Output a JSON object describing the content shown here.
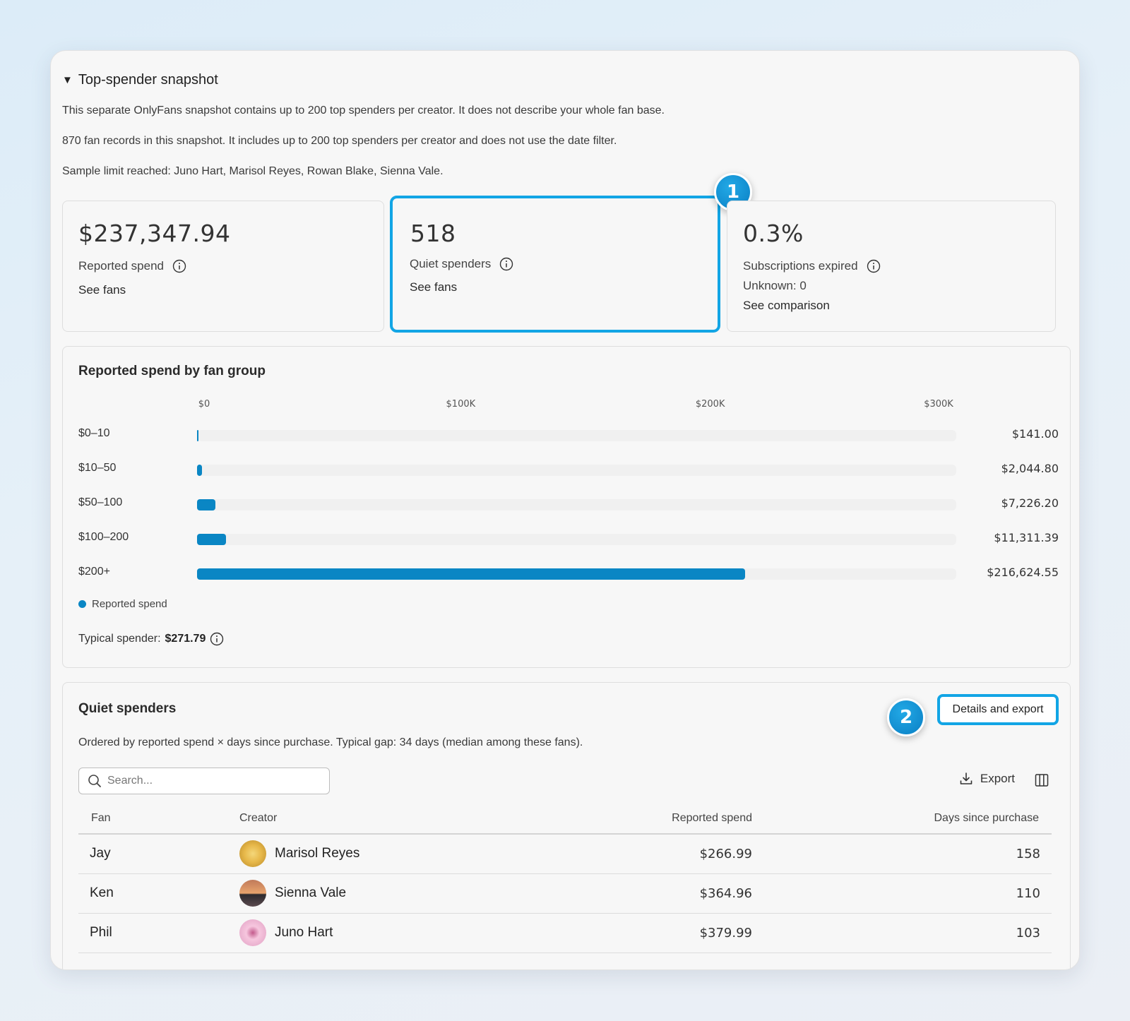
{
  "snapshot": {
    "title": "Top-spender snapshot",
    "para1": "This separate OnlyFans snapshot contains up to 200 top spenders per creator. It does not describe your whole fan base.",
    "para2": "870 fan records in this snapshot. It includes up to 200 top spenders per creator and does not use the date filter.",
    "para3": "Sample limit reached: Juno Hart, Marisol Reyes, Rowan Blake, Sienna Vale."
  },
  "cards": {
    "spend": {
      "value": "$237,347.94",
      "label": "Reported spend",
      "link": "See fans"
    },
    "quiet": {
      "value": "518",
      "label": "Quiet spenders",
      "link": "See fans"
    },
    "expired": {
      "value": "0.3%",
      "label": "Subscriptions expired",
      "unknown": "Unknown: 0",
      "link": "See comparison"
    }
  },
  "badges": {
    "one": "1",
    "two": "2"
  },
  "chart_data": {
    "type": "bar",
    "title": "Reported spend by fan group",
    "orientation": "horizontal",
    "categories": [
      "$0–10",
      "$10–50",
      "$50–100",
      "$100–200",
      "$200+"
    ],
    "values": [
      141.0,
      2044.8,
      7226.2,
      11311.39,
      216624.55
    ],
    "value_labels": [
      "$141.00",
      "$2,044.80",
      "$7,226.20",
      "$11,311.39",
      "$216,624.55"
    ],
    "x_ticks": [
      "$0",
      "$100K",
      "$200K",
      "$300K"
    ],
    "xlim": [
      0,
      300000
    ],
    "series": [
      {
        "name": "Reported spend",
        "color": "#0a86c4"
      }
    ],
    "legend": "bottom-left"
  },
  "typical": {
    "label": "Typical spender:",
    "value": "$271.79"
  },
  "quiet_table": {
    "title": "Quiet spenders",
    "details_button": "Details and export",
    "description": "Ordered by reported spend × days since purchase. Typical gap: 34 days (median among these fans).",
    "search_placeholder": "Search...",
    "export_label": "Export",
    "columns": [
      "Fan",
      "Creator",
      "Reported spend",
      "Days since purchase"
    ],
    "rows": [
      {
        "fan": "Jay",
        "creator": "Marisol Reyes",
        "spend": "$266.99",
        "days": "158"
      },
      {
        "fan": "Ken",
        "creator": "Sienna Vale",
        "spend": "$364.96",
        "days": "110"
      },
      {
        "fan": "Phil",
        "creator": "Juno Hart",
        "spend": "$379.99",
        "days": "103"
      }
    ]
  },
  "colors": {
    "accent": "#12a5e5",
    "bar": "#0a86c4"
  }
}
